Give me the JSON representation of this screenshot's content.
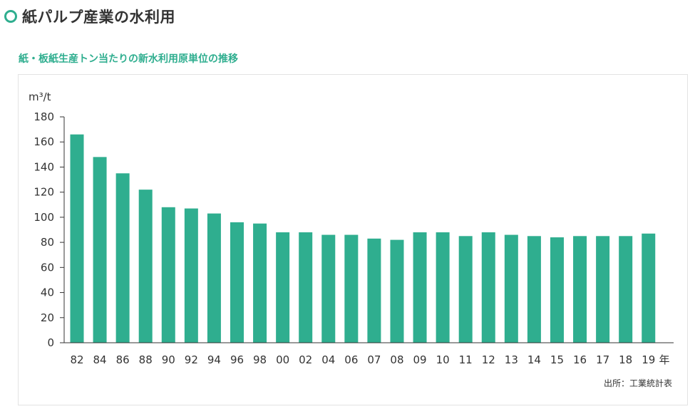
{
  "page": {
    "title": "紙パルプ産業の水利用"
  },
  "colors": {
    "accent": "#2fae8f",
    "bar": "#2fae8f",
    "text": "#333333"
  },
  "chart_data": {
    "type": "bar",
    "title": "紙・板紙生産トン当たりの新水利用原単位の推移",
    "ylabel": "m³/t",
    "xunit": "年",
    "source": "出所：工業統計表",
    "ylim": [
      0,
      180
    ],
    "yticks": [
      0,
      20,
      40,
      60,
      80,
      100,
      120,
      140,
      160,
      180
    ],
    "categories": [
      "82",
      "84",
      "86",
      "88",
      "90",
      "92",
      "94",
      "96",
      "98",
      "00",
      "02",
      "04",
      "06",
      "07",
      "08",
      "09",
      "10",
      "11",
      "12",
      "13",
      "14",
      "15",
      "16",
      "17",
      "18",
      "19"
    ],
    "values": [
      166,
      148,
      135,
      122,
      108,
      107,
      103,
      96,
      95,
      88,
      88,
      86,
      86,
      83,
      82,
      88,
      88,
      85,
      88,
      86,
      85,
      84,
      85,
      85,
      85,
      87
    ]
  }
}
